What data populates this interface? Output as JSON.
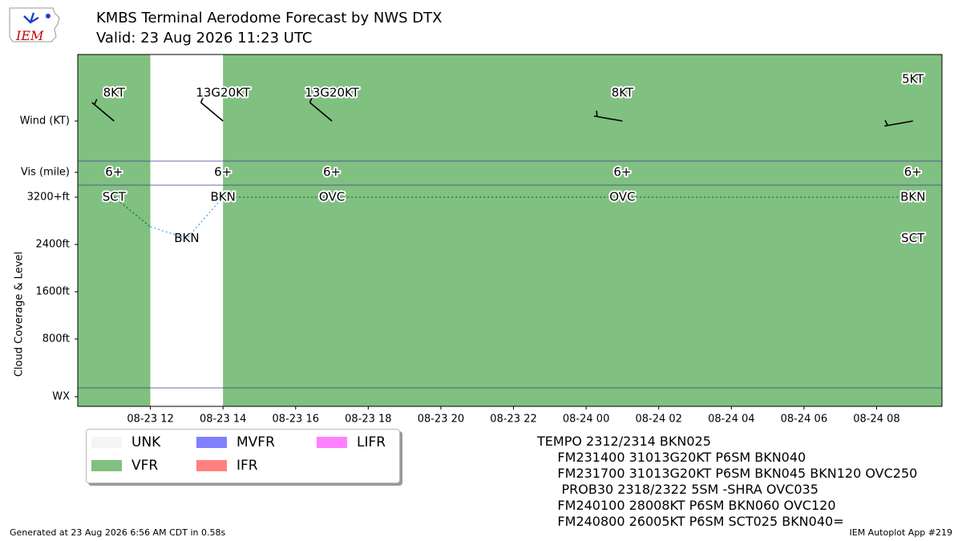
{
  "header": {
    "title_line1": "KMBS Terminal Aerodome Forecast by NWS DTX",
    "title_line2": "Valid: 23 Aug 2026 11:23 UTC",
    "logo_text": "IEM"
  },
  "chart_data": {
    "type": "timeline",
    "x_unit": "UTC time",
    "x_ticks": [
      "08-23 12",
      "08-23 14",
      "08-23 16",
      "08-23 18",
      "08-23 20",
      "08-23 22",
      "08-24 00",
      "08-24 02",
      "08-24 04",
      "08-24 06",
      "08-24 08"
    ],
    "x_tick_hours": [
      12,
      14,
      16,
      18,
      20,
      22,
      24,
      26,
      28,
      30,
      32
    ],
    "x_range_hours": [
      10,
      33.8
    ],
    "y_axis": {
      "ylabel": "Cloud Coverage & Level",
      "row_labels": [
        "Wind (KT)",
        "Vis (mile)",
        "3200+ft",
        "2400ft",
        "1600ft",
        "800ft",
        "WX"
      ],
      "cloud_levels_ft": [
        800,
        1600,
        2400,
        3200
      ]
    },
    "category_spans": [
      {
        "start_hour": 10,
        "end_hour": 12,
        "category": "VFR"
      },
      {
        "start_hour": 12,
        "end_hour": 14,
        "category": "UNK"
      },
      {
        "start_hour": 14,
        "end_hour": 33.8,
        "category": "VFR"
      }
    ],
    "forecasts": [
      {
        "time_hour": 11.0,
        "wind_label": "8KT",
        "wind_dir_deg": 310,
        "wind_kt": 8,
        "vis": "6+",
        "cloud_labels": [
          {
            "text": "SCT",
            "level_ft": 3200
          }
        ]
      },
      {
        "time_hour": 14.0,
        "wind_label": "13G20KT",
        "wind_dir_deg": 310,
        "wind_kt": 13,
        "vis": "6+",
        "cloud_labels": [
          {
            "text": "BKN",
            "level_ft": 3200
          }
        ]
      },
      {
        "time_hour": 17.0,
        "wind_label": "13G20KT",
        "wind_dir_deg": 310,
        "wind_kt": 13,
        "vis": "6+",
        "cloud_labels": [
          {
            "text": "OVC",
            "level_ft": 3200
          }
        ]
      },
      {
        "time_hour": 25.0,
        "wind_label": "8KT",
        "wind_dir_deg": 280,
        "wind_kt": 8,
        "vis": "6+",
        "cloud_labels": [
          {
            "text": "OVC",
            "level_ft": 3200
          }
        ]
      },
      {
        "time_hour": 33.0,
        "wind_label": "5KT",
        "wind_dir_deg": 260,
        "wind_kt": 5,
        "vis": "6+",
        "cloud_labels": [
          {
            "text": "BKN",
            "level_ft": 3200
          },
          {
            "text": "SCT",
            "level_ft": 2500
          }
        ]
      }
    ],
    "tempo": {
      "time_hour": 13.0,
      "cloud_labels": [
        {
          "text": "BKN",
          "level_ft": 2500
        }
      ]
    },
    "ceiling_line": {
      "dashed_green": [
        [
          11,
          3200
        ],
        [
          12,
          2700
        ]
      ],
      "dotted_blue": [
        [
          12,
          2700
        ],
        [
          13,
          2500
        ],
        [
          14,
          3200
        ]
      ],
      "dotted_green_flat": [
        [
          14,
          3200
        ],
        [
          33,
          3200
        ]
      ]
    }
  },
  "legend": {
    "items": [
      {
        "label": "UNK",
        "color": "#f5f5f5"
      },
      {
        "label": "MVFR",
        "color": "#8080ff"
      },
      {
        "label": "LIFR",
        "color": "#ff80ff"
      },
      {
        "label": "VFR",
        "color": "#80c080"
      },
      {
        "label": "IFR",
        "color": "#ff8080"
      }
    ]
  },
  "taf_text": "TEMPO 2312/2314 BKN025\n     FM231400 31013G20KT P6SM BKN040\n     FM231700 31013G20KT P6SM BKN045 BKN120 OVC250\n      PROB30 2318/2322 5SM -SHRA OVC035\n     FM240100 28008KT P6SM BKN060 OVC120\n     FM240800 26005KT P6SM SCT025 BKN040=",
  "footer": {
    "left": "Generated at 23 Aug 2026 6:56 AM CDT in 0.58s",
    "right": "IEM Autoplot App #219"
  },
  "colors": {
    "vfr": "#80c080",
    "unk": "#ffffff",
    "row_divider": "#3a3a9a"
  }
}
